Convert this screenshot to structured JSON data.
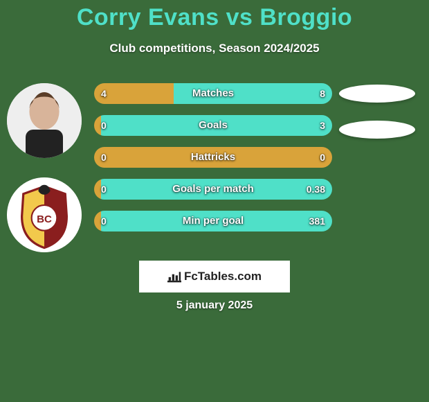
{
  "background_color": "#3a6b3a",
  "title": {
    "text": "Corry Evans vs Broggio",
    "color": "#4fe0c8",
    "fontsize": 34
  },
  "subtitle": {
    "text": "Club competitions, Season 2024/2025",
    "color": "#ffffff",
    "fontsize": 17
  },
  "avatars": [
    {
      "name": "player-1-avatar",
      "type": "face",
      "bg": "#e8e8e8"
    },
    {
      "name": "player-2-badge",
      "type": "crest",
      "bg": "#ffffff"
    }
  ],
  "colors": {
    "bar_left": "#d9a33a",
    "bar_right": "#4fe0c8",
    "bar_label_text": "#ffffff",
    "pill_bg": "#ffffff"
  },
  "bars": [
    {
      "label": "Matches",
      "left_value": "4",
      "right_value": "8",
      "left_pct": 33.3,
      "right_pct": 66.7
    },
    {
      "label": "Goals",
      "left_value": "0",
      "right_value": "3",
      "left_pct": 3,
      "right_pct": 97
    },
    {
      "label": "Hattricks",
      "left_value": "0",
      "right_value": "0",
      "left_pct": 100,
      "right_pct": 0
    },
    {
      "label": "Goals per match",
      "left_value": "0",
      "right_value": "0.38",
      "left_pct": 3,
      "right_pct": 97
    },
    {
      "label": "Min per goal",
      "left_value": "0",
      "right_value": "381",
      "left_pct": 3,
      "right_pct": 97
    }
  ],
  "pills_visible": 2,
  "logo_text": "FcTables.com",
  "date_text": "5 january 2025"
}
